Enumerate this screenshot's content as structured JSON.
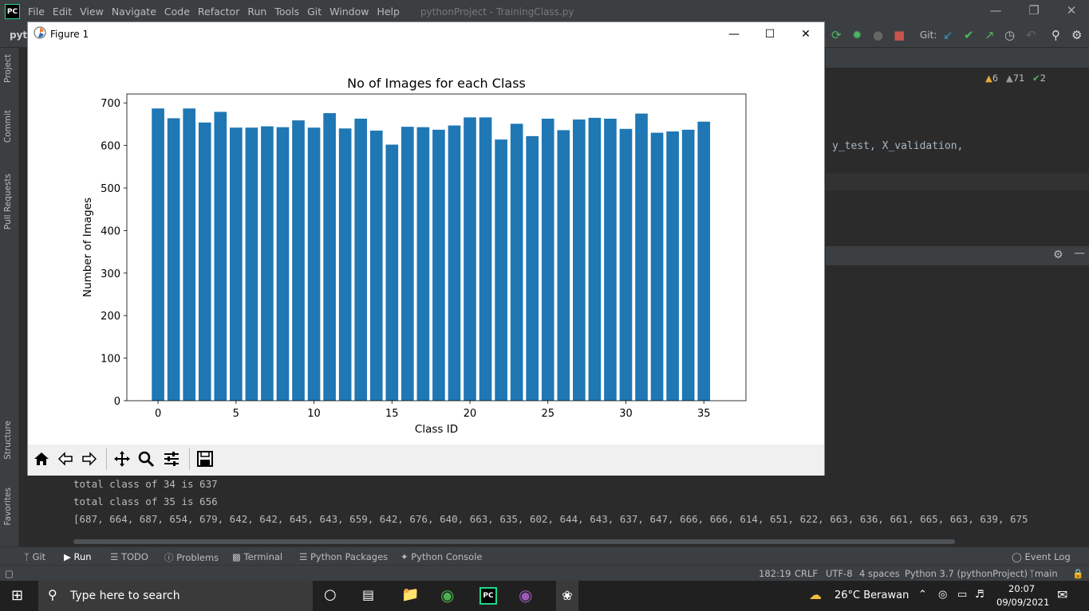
{
  "ide": {
    "logo": "PC",
    "menu": [
      "File",
      "Edit",
      "View",
      "Navigate",
      "Code",
      "Refactor",
      "Run",
      "Tools",
      "Git",
      "Window",
      "Help"
    ],
    "window_title": "pythonProject - TrainingClass.py",
    "project_crumb": "pyth",
    "git_label": "Git:",
    "left_strip": [
      "Project",
      "Commit",
      "Pull Requests",
      "Structure",
      "Favorites"
    ],
    "inspections": {
      "warnings": "6",
      "weak_warnings": "71",
      "ok": "2"
    },
    "code_line": "y_test, X_validation,"
  },
  "console": {
    "lines": [
      "total class of 34 is 637",
      "total class of 35 is 656",
      "[687, 664, 687, 654, 679, 642, 642, 645, 643, 659, 642, 676, 640, 663, 635, 602, 644, 643, 637, 647, 666, 666, 614, 651, 622, 663, 636, 661, 665, 663, 639, 675"
    ]
  },
  "bottom_tabs": [
    "Git",
    "Run",
    "TODO",
    "Problems",
    "Terminal",
    "Python Packages",
    "Python Console"
  ],
  "event_log": "Event Log",
  "status": {
    "position": "182:19",
    "line_sep": "CRLF",
    "encoding": "UTF-8",
    "indent": "4 spaces",
    "interpreter": "Python 3.7 (pythonProject)",
    "branch": "main"
  },
  "taskbar": {
    "search_placeholder": "Type here to search",
    "weather": "26°C  Berawan",
    "time": "20:07",
    "date": "09/09/2021"
  },
  "figure": {
    "title": "Figure 1"
  },
  "colors": {
    "bar": "#1f77b4",
    "ide_bg": "#2b2b2b",
    "ide_panel": "#3c3f41"
  },
  "chart_data": {
    "type": "bar",
    "title": "No of Images for each Class",
    "xlabel": "Class ID",
    "ylabel": "Number of Images",
    "categories": [
      0,
      1,
      2,
      3,
      4,
      5,
      6,
      7,
      8,
      9,
      10,
      11,
      12,
      13,
      14,
      15,
      16,
      17,
      18,
      19,
      20,
      21,
      22,
      23,
      24,
      25,
      26,
      27,
      28,
      29,
      30,
      31,
      32,
      33,
      34,
      35
    ],
    "values": [
      687,
      664,
      687,
      654,
      679,
      642,
      642,
      645,
      643,
      659,
      642,
      676,
      640,
      663,
      635,
      602,
      644,
      643,
      637,
      647,
      666,
      666,
      614,
      651,
      622,
      663,
      636,
      661,
      665,
      663,
      639,
      675,
      630,
      633,
      637,
      656
    ],
    "xticks": [
      0,
      5,
      10,
      15,
      20,
      25,
      30,
      35
    ],
    "yticks": [
      0,
      100,
      200,
      300,
      400,
      500,
      600,
      700
    ],
    "xlim": [
      -2.0,
      37.7
    ],
    "ylim": [
      0,
      721
    ],
    "grid": false
  }
}
